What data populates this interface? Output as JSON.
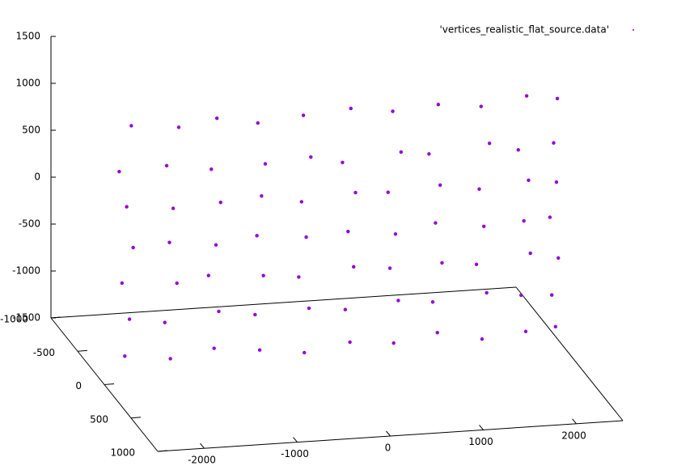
{
  "chart_data": {
    "type": "scatter3d",
    "series": [
      {
        "name": "'vertices_realistic_flat_source.data'",
        "color": "#9400d3",
        "x": [
          -2280,
          -2230,
          -2310,
          -2190,
          -2260,
          -2340,
          -2210,
          -1790,
          -1850,
          -1720,
          -1800,
          -1760,
          -1830,
          -1700,
          -1320,
          -1270,
          -1380,
          -1300,
          -1250,
          -1350,
          -1290,
          -830,
          -880,
          -790,
          -860,
          -810,
          -770,
          -850,
          -350,
          -300,
          -410,
          -330,
          -380,
          -280,
          -360,
          140,
          90,
          180,
          120,
          200,
          60,
          150,
          610,
          660,
          570,
          630,
          550,
          690,
          600,
          1080,
          1030,
          1130,
          1060,
          1110,
          990,
          1090,
          1560,
          1610,
          1500,
          1580,
          1530,
          1640,
          1550,
          2030,
          1980,
          2080,
          2010,
          2060,
          1950,
          2040,
          2350,
          2310,
          2380,
          2290,
          2360,
          2330,
          2370
        ],
        "y": [
          0,
          0,
          0,
          0,
          0,
          0,
          0,
          0,
          0,
          0,
          0,
          0,
          0,
          0,
          0,
          0,
          0,
          0,
          0,
          0,
          0,
          0,
          0,
          0,
          0,
          0,
          0,
          0,
          0,
          0,
          0,
          0,
          0,
          0,
          0,
          0,
          0,
          0,
          0,
          0,
          0,
          0,
          0,
          0,
          0,
          0,
          0,
          0,
          0,
          0,
          0,
          0,
          0,
          0,
          0,
          0,
          0,
          0,
          0,
          0,
          0,
          0,
          0,
          0,
          0,
          0,
          0,
          0,
          0,
          0,
          0,
          0,
          0,
          0,
          0,
          0,
          0
        ],
        "z": [
          -1210,
          -820,
          -430,
          -60,
          380,
          760,
          1240,
          -1270,
          -880,
          -470,
          -30,
          330,
          790,
          1190,
          -1190,
          -800,
          -410,
          -90,
          360,
          720,
          1260,
          -1240,
          -860,
          -450,
          -20,
          400,
          740,
          1180,
          -1300,
          -830,
          -490,
          -70,
          310,
          780,
          1230,
          -1220,
          -870,
          -420,
          -40,
          370,
          700,
          1270,
          -1260,
          -810,
          -460,
          -100,
          350,
          770,
          1210,
          -1180,
          -850,
          -440,
          -10,
          390,
          730,
          1250,
          -1280,
          -790,
          -480,
          -80,
          320,
          800,
          1200,
          -1230,
          -840,
          -400,
          -50,
          380,
          710,
          1280,
          -1200,
          -860,
          -470,
          -30,
          340,
          760,
          1230
        ]
      }
    ],
    "xlim": [
      -2500,
      2500
    ],
    "xticks": [
      -2000,
      -1000,
      0,
      1000,
      2000
    ],
    "ylim": [
      -1000,
      1000
    ],
    "yticks": [
      -1000,
      -500,
      0,
      500,
      1000
    ],
    "zlim": [
      -1500,
      1500
    ],
    "zticks": [
      -1500,
      -1000,
      -500,
      0,
      500,
      1000,
      1500
    ],
    "legend": "top-right"
  }
}
